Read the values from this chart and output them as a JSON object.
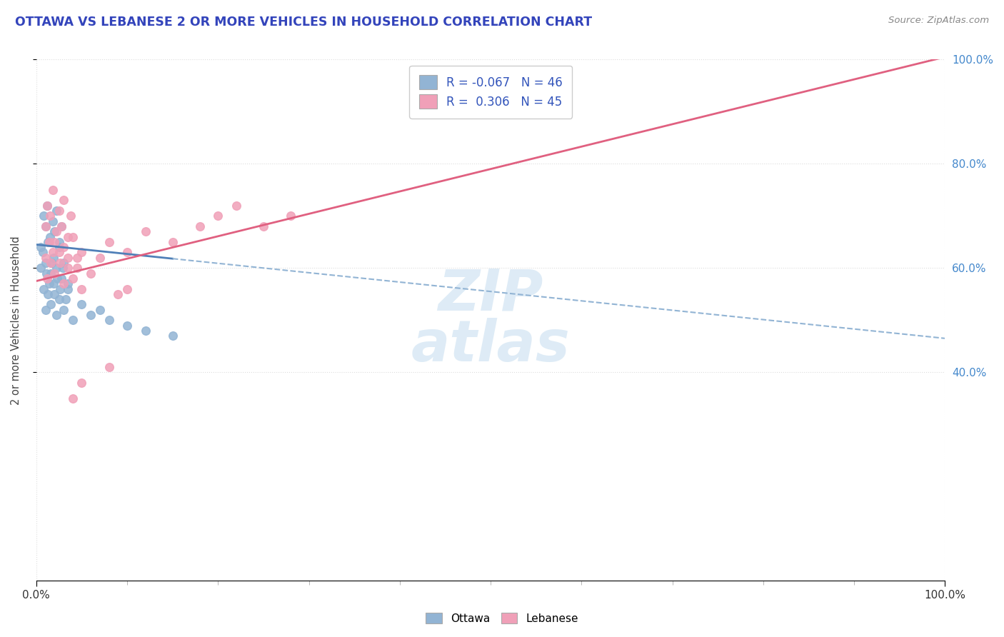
{
  "title": "OTTAWA VS LEBANESE 2 OR MORE VEHICLES IN HOUSEHOLD CORRELATION CHART",
  "source": "Source: ZipAtlas.com",
  "ylabel": "2 or more Vehicles in Household",
  "ottawa_color": "#92b4d4",
  "ottawa_line_color": "#5080b8",
  "lebanese_color": "#f0a0b8",
  "lebanese_line_color": "#e06080",
  "ottawa_R": -0.067,
  "ottawa_N": 46,
  "lebanese_R": 0.306,
  "lebanese_N": 45,
  "legend_text_color": "#3355bb",
  "title_color": "#3344bb",
  "source_color": "#888888",
  "axis_tick_color": "#4488cc",
  "watermark_color": "#c8dff0",
  "grid_color": "#dddddd",
  "background_color": "#ffffff",
  "ottawa_points_x": [
    0.005,
    0.008,
    0.01,
    0.012,
    0.015,
    0.018,
    0.02,
    0.022,
    0.025,
    0.028,
    0.005,
    0.007,
    0.01,
    0.013,
    0.016,
    0.019,
    0.022,
    0.025,
    0.028,
    0.03,
    0.008,
    0.011,
    0.014,
    0.017,
    0.02,
    0.023,
    0.026,
    0.029,
    0.032,
    0.035,
    0.01,
    0.013,
    0.016,
    0.019,
    0.022,
    0.025,
    0.03,
    0.035,
    0.04,
    0.05,
    0.06,
    0.07,
    0.08,
    0.1,
    0.12,
    0.15
  ],
  "ottawa_points_y": [
    0.64,
    0.7,
    0.68,
    0.72,
    0.66,
    0.69,
    0.67,
    0.71,
    0.65,
    0.68,
    0.6,
    0.63,
    0.61,
    0.65,
    0.59,
    0.62,
    0.6,
    0.64,
    0.58,
    0.61,
    0.56,
    0.59,
    0.57,
    0.61,
    0.55,
    0.58,
    0.56,
    0.6,
    0.54,
    0.57,
    0.52,
    0.55,
    0.53,
    0.57,
    0.51,
    0.54,
    0.52,
    0.56,
    0.5,
    0.53,
    0.51,
    0.52,
    0.5,
    0.49,
    0.48,
    0.47
  ],
  "lebanese_points_x": [
    0.01,
    0.012,
    0.015,
    0.018,
    0.02,
    0.025,
    0.028,
    0.03,
    0.035,
    0.038,
    0.01,
    0.014,
    0.018,
    0.022,
    0.026,
    0.03,
    0.035,
    0.04,
    0.045,
    0.05,
    0.012,
    0.016,
    0.02,
    0.025,
    0.03,
    0.035,
    0.04,
    0.045,
    0.05,
    0.06,
    0.07,
    0.08,
    0.1,
    0.12,
    0.15,
    0.18,
    0.2,
    0.22,
    0.25,
    0.28,
    0.08,
    0.1,
    0.04,
    0.05,
    0.09
  ],
  "lebanese_points_y": [
    0.68,
    0.72,
    0.7,
    0.75,
    0.65,
    0.71,
    0.68,
    0.73,
    0.66,
    0.7,
    0.62,
    0.65,
    0.63,
    0.67,
    0.61,
    0.64,
    0.62,
    0.66,
    0.6,
    0.63,
    0.58,
    0.61,
    0.59,
    0.63,
    0.57,
    0.6,
    0.58,
    0.62,
    0.56,
    0.59,
    0.62,
    0.65,
    0.63,
    0.67,
    0.65,
    0.68,
    0.7,
    0.72,
    0.68,
    0.7,
    0.41,
    0.56,
    0.35,
    0.38,
    0.55
  ],
  "trendline_intercept_ott": 0.645,
  "trendline_slope_ott": -0.18,
  "trendline_intercept_leb": 0.575,
  "trendline_slope_leb": 0.43
}
